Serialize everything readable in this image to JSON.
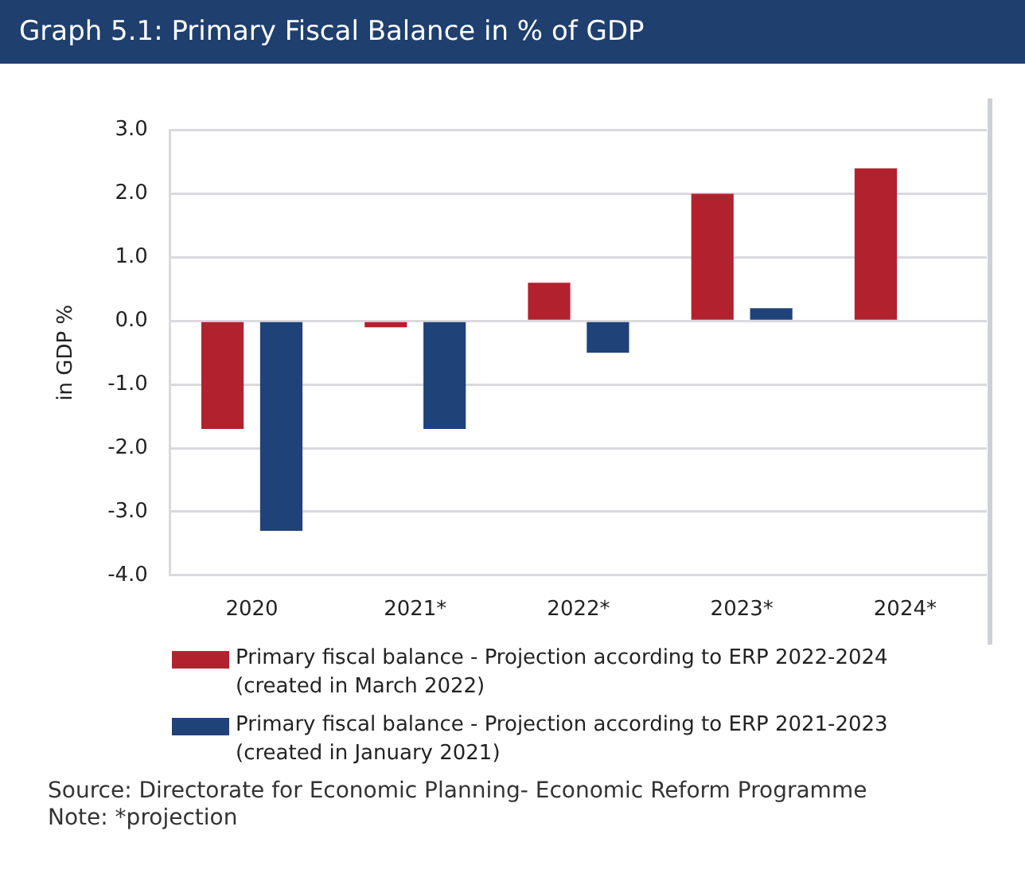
{
  "chart_data": {
    "type": "bar",
    "title": "Graph 5.1: Primary Fiscal Balance in % of GDP",
    "ylabel": "in GDP %",
    "categories": [
      "2020",
      "2021*",
      "2022*",
      "2023*",
      "2024*"
    ],
    "series": [
      {
        "name": "Primary fiscal balance - Projection according to ERP 2022-2024 (created in March 2022)",
        "color": "#b2222e",
        "values": [
          -1.7,
          -0.1,
          0.6,
          2.0,
          2.4
        ]
      },
      {
        "name": "Primary fiscal balance - Projection according to ERP 2021-2023 (created in January 2021)",
        "color": "#1f4279",
        "values": [
          -3.3,
          -1.7,
          -0.5,
          0.2,
          null
        ]
      }
    ],
    "ylim": [
      -4,
      3
    ],
    "yticks": [
      {
        "value": -4,
        "label": "-4.0"
      },
      {
        "value": -3,
        "label": "-3.0"
      },
      {
        "value": -2,
        "label": "-2.0"
      },
      {
        "value": -1,
        "label": "-1.0"
      },
      {
        "value": 0,
        "label": "0.0"
      },
      {
        "value": 1,
        "label": "1.0"
      },
      {
        "value": 2,
        "label": "2.0"
      },
      {
        "value": 3,
        "label": "3.0"
      }
    ],
    "grid": "y",
    "legend": "bottom",
    "annotations": [
      "Source: Directorate  for Economic Planning- Economic Reform Programme",
      "Note: *projection"
    ]
  }
}
